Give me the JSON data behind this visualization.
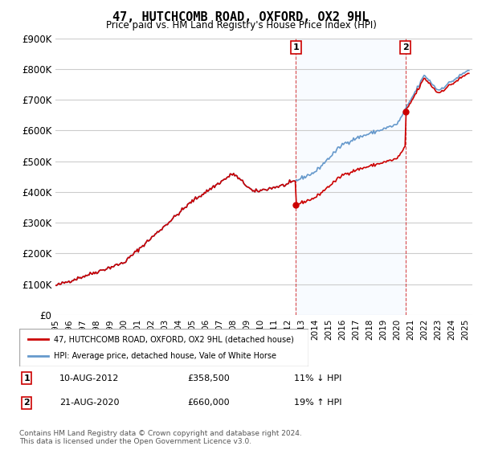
{
  "title": "47, HUTCHCOMB ROAD, OXFORD, OX2 9HL",
  "subtitle": "Price paid vs. HM Land Registry's House Price Index (HPI)",
  "ylabel_ticks": [
    "£0",
    "£100K",
    "£200K",
    "£300K",
    "£400K",
    "£500K",
    "£600K",
    "£700K",
    "£800K",
    "£900K"
  ],
  "ylim": [
    0,
    900000
  ],
  "xlim_start": 1995.0,
  "xlim_end": 2025.5,
  "sale1_x": 2012.6,
  "sale1_y": 358500,
  "sale1_label": "1",
  "sale1_date": "10-AUG-2012",
  "sale1_price": "£358,500",
  "sale1_hpi": "11% ↓ HPI",
  "sale2_x": 2020.6,
  "sale2_y": 660000,
  "sale2_label": "2",
  "sale2_date": "21-AUG-2020",
  "sale2_price": "£660,000",
  "sale2_hpi": "19% ↑ HPI",
  "hpi_color": "#6699cc",
  "sale_color": "#cc0000",
  "highlight_bg": "#ddeeff",
  "legend_label1": "47, HUTCHCOMB ROAD, OXFORD, OX2 9HL (detached house)",
  "legend_label2": "HPI: Average price, detached house, Vale of White Horse",
  "footer": "Contains HM Land Registry data © Crown copyright and database right 2024.\nThis data is licensed under the Open Government Licence v3.0."
}
